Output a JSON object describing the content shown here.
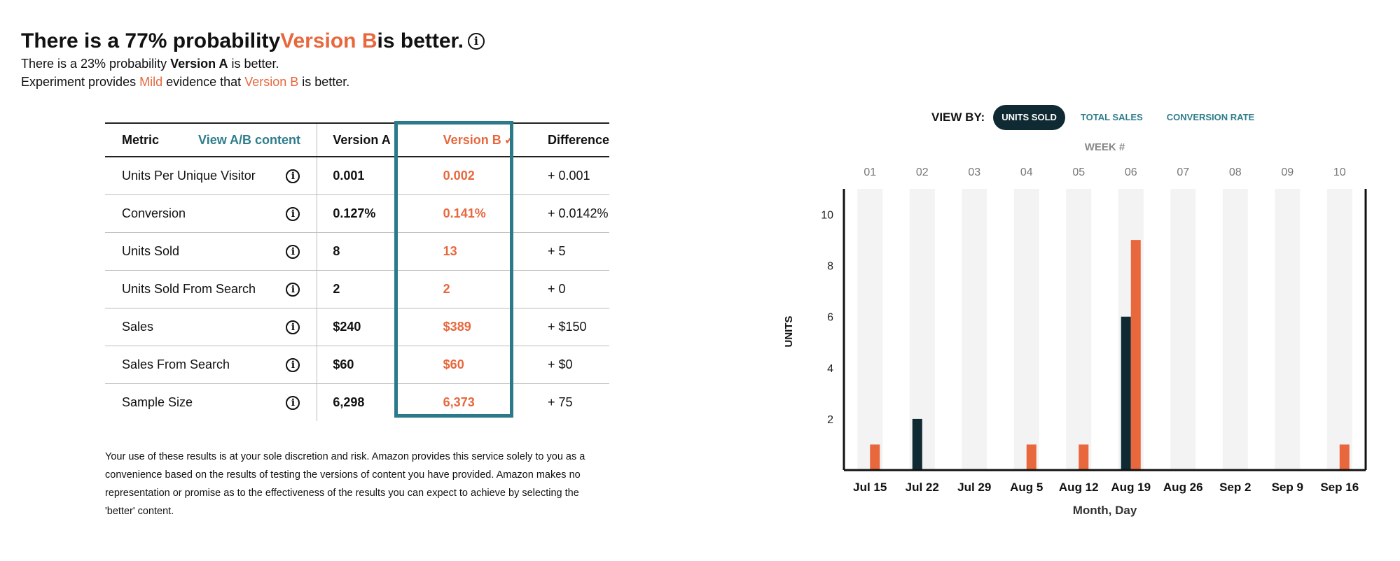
{
  "headline": {
    "prefix": "There is a 77% probability ",
    "version": "Version B",
    "suffix": " is better.",
    "info_icon": "info-icon"
  },
  "subline": {
    "prefix": "There is a 23% probability ",
    "version": "Version A",
    "suffix": " is better."
  },
  "evidence": {
    "prefix": "Experiment provides ",
    "strength": "Mild",
    "middle": " evidence that ",
    "version": "Version B",
    "suffix": " is better."
  },
  "table": {
    "headers": {
      "metric": "Metric",
      "view_ab": "View A/B content",
      "version_a": "Version A",
      "version_b": "Version B",
      "difference": "Difference"
    },
    "check_icon": "checkmark-icon",
    "rows": [
      {
        "metric": "Units Per Unique Visitor",
        "a": "0.001",
        "b": "0.002",
        "diff": "+ 0.001"
      },
      {
        "metric": "Conversion",
        "a": "0.127%",
        "b": "0.141%",
        "diff": "+ 0.0142%"
      },
      {
        "metric": "Units Sold",
        "a": "8",
        "b": "13",
        "diff": "+ 5"
      },
      {
        "metric": "Units Sold From Search",
        "a": "2",
        "b": "2",
        "diff": "+ 0"
      },
      {
        "metric": "Sales",
        "a": "$240",
        "b": "$389",
        "diff": "+ $150"
      },
      {
        "metric": "Sales From Search",
        "a": "$60",
        "b": "$60",
        "diff": "+ $0"
      },
      {
        "metric": "Sample Size",
        "a": "6,298",
        "b": "6,373",
        "diff": "+ 75"
      }
    ]
  },
  "disclaimer": "Your use of these results is at your sole discretion and risk. Amazon provides this service solely to you as a convenience based on the results of testing the versions of content you have provided. Amazon makes no representation or promise as to the effectiveness of the results you can expect to achieve by selecting the 'better' content.",
  "view_by": {
    "label": "VIEW BY:",
    "options": [
      "UNITS SOLD",
      "TOTAL SALES",
      "CONVERSION RATE"
    ],
    "selected": "UNITS SOLD"
  },
  "colors": {
    "version_a": "#0f2a33",
    "version_b": "#e8673c",
    "accent": "#2e7d8c",
    "week_band": "#f3f3f3"
  },
  "chart_data": {
    "type": "bar",
    "top_axis_title": "WEEK #",
    "weeks": [
      "01",
      "02",
      "03",
      "04",
      "05",
      "06",
      "07",
      "08",
      "09",
      "10"
    ],
    "categories": [
      "Jul 15",
      "Jul 22",
      "Jul 29",
      "Aug 5",
      "Aug 12",
      "Aug 19",
      "Aug 26",
      "Sep 2",
      "Sep 9",
      "Sep 16"
    ],
    "xlabel": "Month, Day",
    "ylabel": "UNITS",
    "ylim": [
      0,
      11
    ],
    "yticks": [
      2,
      4,
      6,
      8,
      10
    ],
    "grid": false,
    "series": [
      {
        "values": [
          0,
          2,
          0,
          0,
          0,
          6,
          0,
          0,
          0,
          0
        ],
        "color": "#0f2a33"
      },
      {
        "values": [
          1,
          0,
          0,
          1,
          1,
          9,
          0,
          0,
          0,
          1
        ],
        "color": "#e8673c"
      }
    ]
  }
}
